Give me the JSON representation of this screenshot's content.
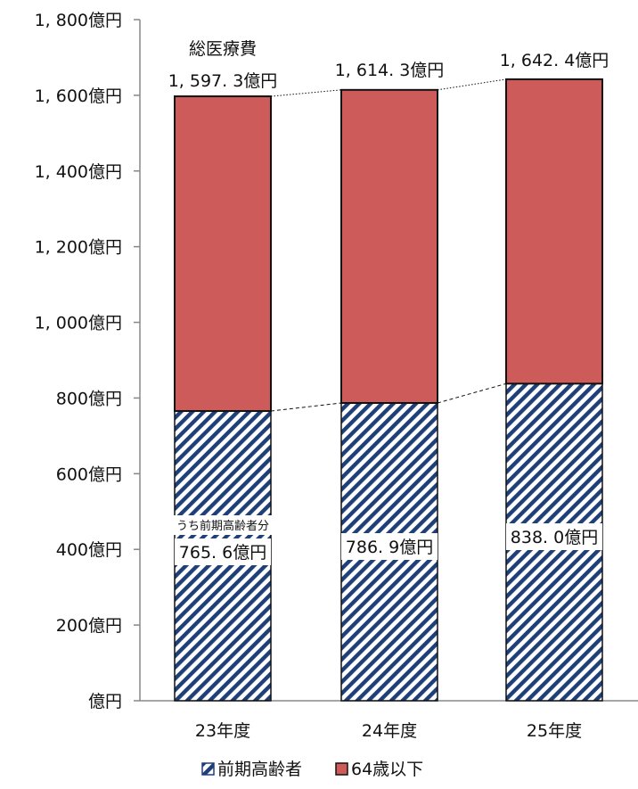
{
  "chart_data": {
    "type": "bar",
    "stacked": true,
    "categories": [
      "23年度",
      "24年度",
      "25年度"
    ],
    "series": [
      {
        "name": "前期高齢者",
        "values": [
          765.6,
          786.9,
          838.0
        ],
        "color": "#1f3f78",
        "pattern": "diagonal-stripes"
      },
      {
        "name": "64歳以下",
        "values": [
          831.7,
          827.4,
          804.4
        ],
        "color": "#cd5b59"
      }
    ],
    "totals": [
      1597.3,
      1614.3,
      1642.4
    ],
    "ylim": [
      0,
      1800
    ],
    "yticks": [
      {
        "value": 0,
        "label": "億円"
      },
      {
        "value": 200,
        "label": "200億円"
      },
      {
        "value": 400,
        "label": "400億円"
      },
      {
        "value": 600,
        "label": "600億円"
      },
      {
        "value": 800,
        "label": "800億円"
      },
      {
        "value": 1000,
        "label": "1, 000億円"
      },
      {
        "value": 1200,
        "label": "1, 200億円"
      },
      {
        "value": 1400,
        "label": "1, 400億円"
      },
      {
        "value": 1600,
        "label": "1, 600億円"
      },
      {
        "value": 1800,
        "label": "1, 800億円"
      }
    ],
    "total_labels": [
      "1, 597. 3億円",
      "1, 614. 3億円",
      "1, 642. 4億円"
    ],
    "total_caption": "総医療費",
    "sub_labels": [
      "765. 6億円",
      "786. 9億円",
      "838. 0億円"
    ],
    "sub_caption": "うち前期高齢者分",
    "legend": [
      "前期高齢者",
      "64歳以下"
    ],
    "legend_position": "bottom",
    "grid": false,
    "connector_lines": true
  }
}
